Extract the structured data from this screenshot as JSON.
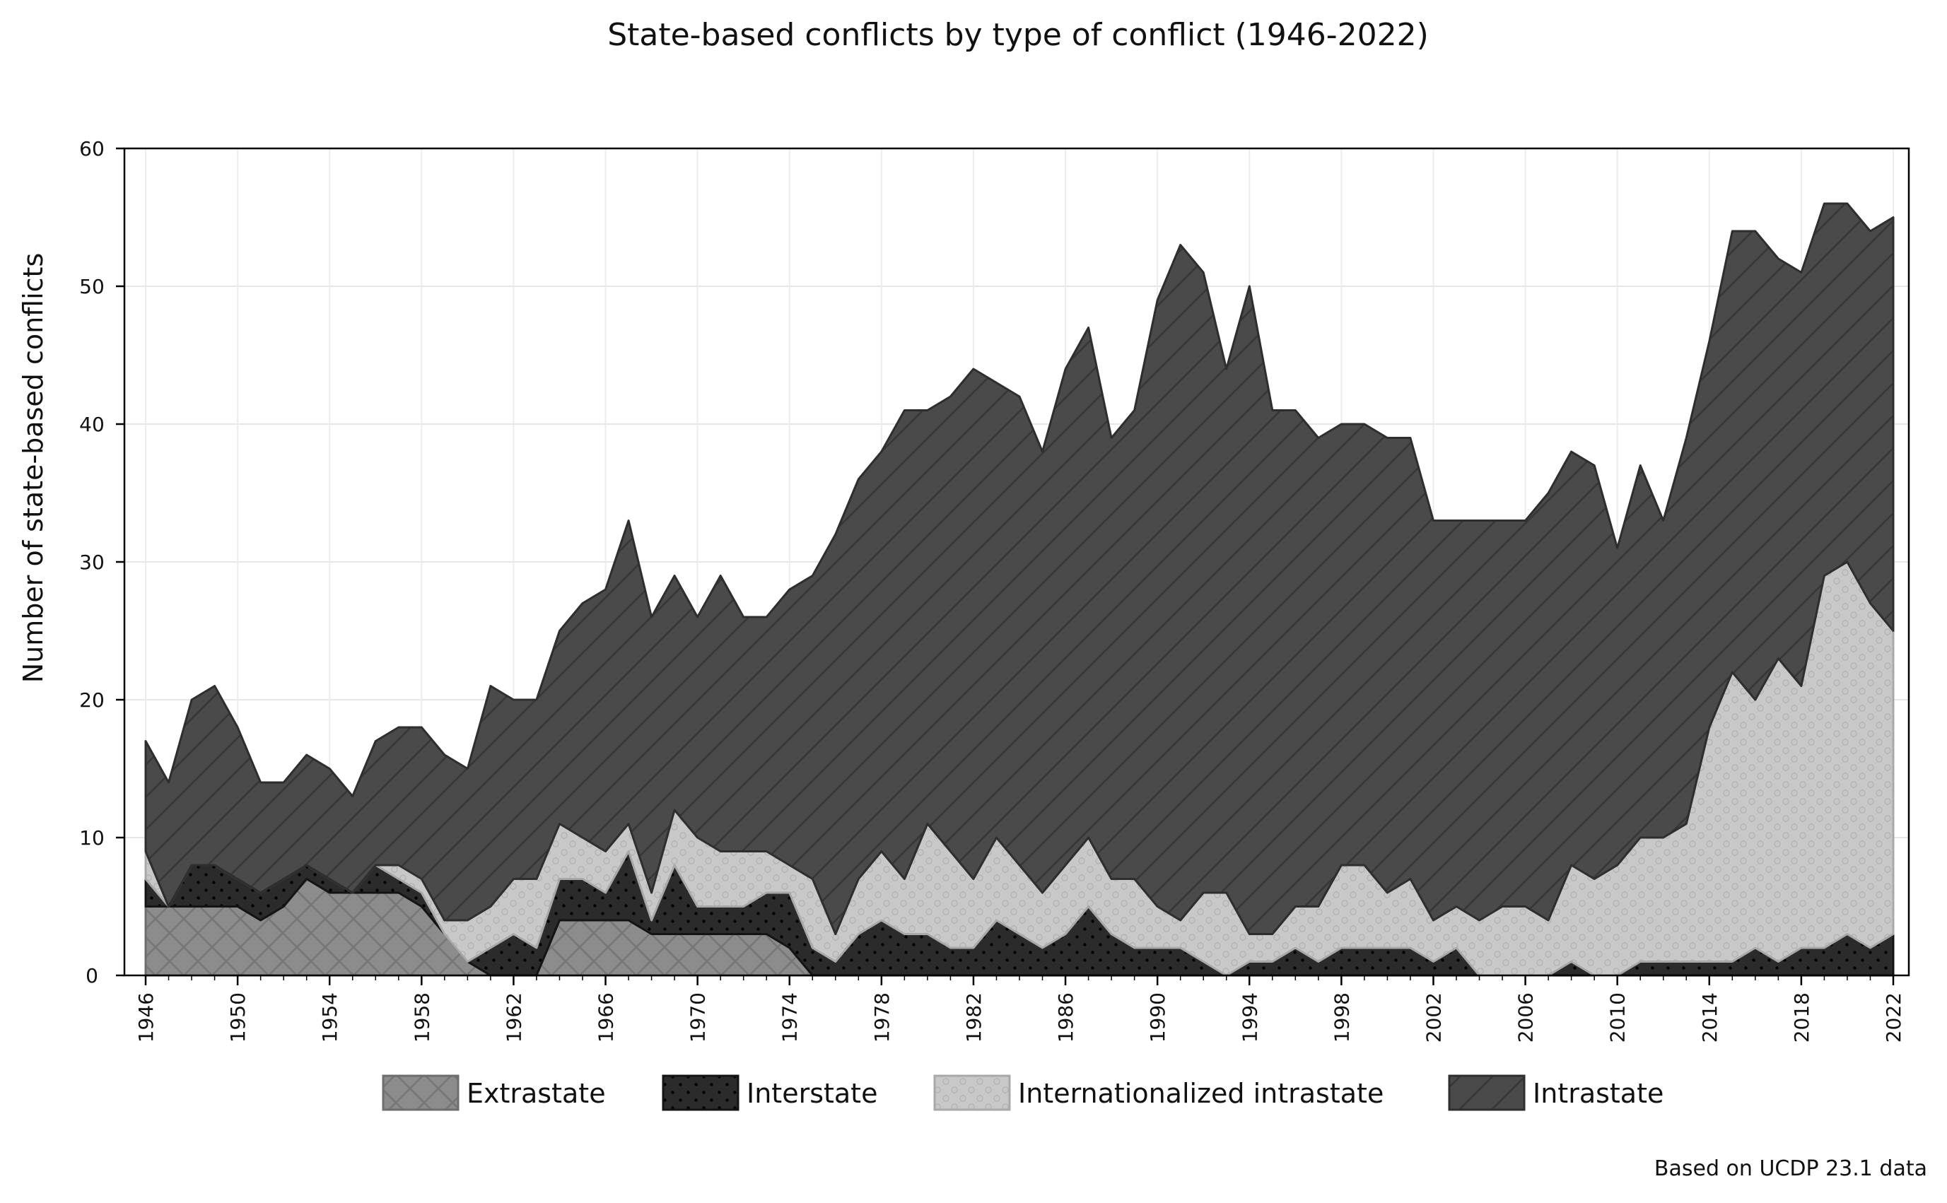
{
  "chart_data": {
    "type": "area",
    "stacked": true,
    "title": "State-based conflicts by type of conflict (1946-2022)",
    "xlabel": "",
    "ylabel": "Number of state-based conflicts",
    "source_note": "Based on UCDP 23.1 data",
    "ylim": [
      0,
      60
    ],
    "yticks": [
      0,
      10,
      20,
      30,
      40,
      50,
      60
    ],
    "xlim": [
      1946,
      2022
    ],
    "xticks": [
      1946,
      1950,
      1954,
      1958,
      1962,
      1966,
      1970,
      1974,
      1978,
      1982,
      1986,
      1990,
      1994,
      1998,
      2002,
      2006,
      2010,
      2014,
      2018,
      2022
    ],
    "grid": true,
    "legend_position": "bottom",
    "x": [
      1946,
      1947,
      1948,
      1949,
      1950,
      1951,
      1952,
      1953,
      1954,
      1955,
      1956,
      1957,
      1958,
      1959,
      1960,
      1961,
      1962,
      1963,
      1964,
      1965,
      1966,
      1967,
      1968,
      1969,
      1970,
      1971,
      1972,
      1973,
      1974,
      1975,
      1976,
      1977,
      1978,
      1979,
      1980,
      1981,
      1982,
      1983,
      1984,
      1985,
      1986,
      1987,
      1988,
      1989,
      1990,
      1991,
      1992,
      1993,
      1994,
      1995,
      1996,
      1997,
      1998,
      1999,
      2000,
      2001,
      2002,
      2003,
      2004,
      2005,
      2006,
      2007,
      2008,
      2009,
      2010,
      2011,
      2012,
      2013,
      2014,
      2015,
      2016,
      2017,
      2018,
      2019,
      2020,
      2021,
      2022
    ],
    "series": [
      {
        "name": "Extrastate",
        "color": "#8c8c8c",
        "pattern": "crosshatch",
        "values": [
          5,
          5,
          5,
          5,
          5,
          4,
          5,
          7,
          6,
          6,
          6,
          6,
          5,
          3,
          1,
          0,
          0,
          0,
          4,
          4,
          4,
          4,
          3,
          3,
          3,
          3,
          3,
          3,
          2,
          0,
          0,
          0,
          0,
          0,
          0,
          0,
          0,
          0,
          0,
          0,
          0,
          0,
          0,
          0,
          0,
          0,
          0,
          0,
          0,
          0,
          0,
          0,
          0,
          0,
          0,
          0,
          0,
          0,
          0,
          0,
          0,
          0,
          0,
          0,
          0,
          0,
          0,
          0,
          0,
          0,
          0,
          0,
          0,
          0,
          0,
          0,
          0
        ]
      },
      {
        "name": "Interstate",
        "color": "#2b2b2b",
        "pattern": "dots",
        "values": [
          2,
          0,
          3,
          3,
          2,
          2,
          2,
          1,
          1,
          0,
          2,
          1,
          1,
          0,
          0,
          2,
          3,
          2,
          3,
          3,
          2,
          5,
          1,
          5,
          2,
          2,
          2,
          3,
          4,
          2,
          1,
          3,
          4,
          3,
          3,
          2,
          2,
          4,
          3,
          2,
          3,
          5,
          3,
          2,
          2,
          2,
          1,
          0,
          1,
          1,
          2,
          1,
          2,
          2,
          2,
          2,
          1,
          2,
          0,
          0,
          0,
          0,
          1,
          0,
          0,
          1,
          1,
          1,
          1,
          1,
          2,
          1,
          2,
          2,
          3,
          2,
          3
        ]
      },
      {
        "name": "Internationalized intrastate",
        "color": "#c8c8c8",
        "pattern": "circles",
        "values": [
          2,
          0,
          0,
          0,
          0,
          0,
          0,
          0,
          0,
          0,
          0,
          1,
          1,
          1,
          3,
          3,
          4,
          5,
          4,
          3,
          3,
          2,
          2,
          4,
          5,
          4,
          4,
          3,
          2,
          5,
          2,
          4,
          5,
          4,
          8,
          7,
          5,
          6,
          5,
          4,
          5,
          5,
          4,
          5,
          3,
          2,
          5,
          6,
          2,
          2,
          3,
          4,
          6,
          6,
          4,
          5,
          3,
          3,
          4,
          5,
          5,
          4,
          7,
          7,
          8,
          9,
          9,
          10,
          17,
          21,
          18,
          22,
          19,
          27,
          27,
          25,
          22
        ]
      },
      {
        "name": "Intrastate",
        "color": "#4a4a4a",
        "pattern": "diagonal",
        "values": [
          8,
          9,
          12,
          13,
          11,
          8,
          7,
          8,
          8,
          7,
          9,
          10,
          11,
          12,
          11,
          16,
          13,
          13,
          14,
          17,
          19,
          22,
          20,
          17,
          16,
          20,
          17,
          17,
          20,
          22,
          29,
          29,
          29,
          34,
          30,
          33,
          37,
          33,
          34,
          32,
          36,
          37,
          32,
          34,
          44,
          49,
          45,
          38,
          47,
          38,
          36,
          34,
          32,
          32,
          33,
          32,
          29,
          28,
          29,
          28,
          28,
          31,
          30,
          30,
          23,
          27,
          23,
          28,
          28,
          32,
          34,
          29,
          30,
          27,
          26,
          27,
          30
        ]
      }
    ]
  }
}
